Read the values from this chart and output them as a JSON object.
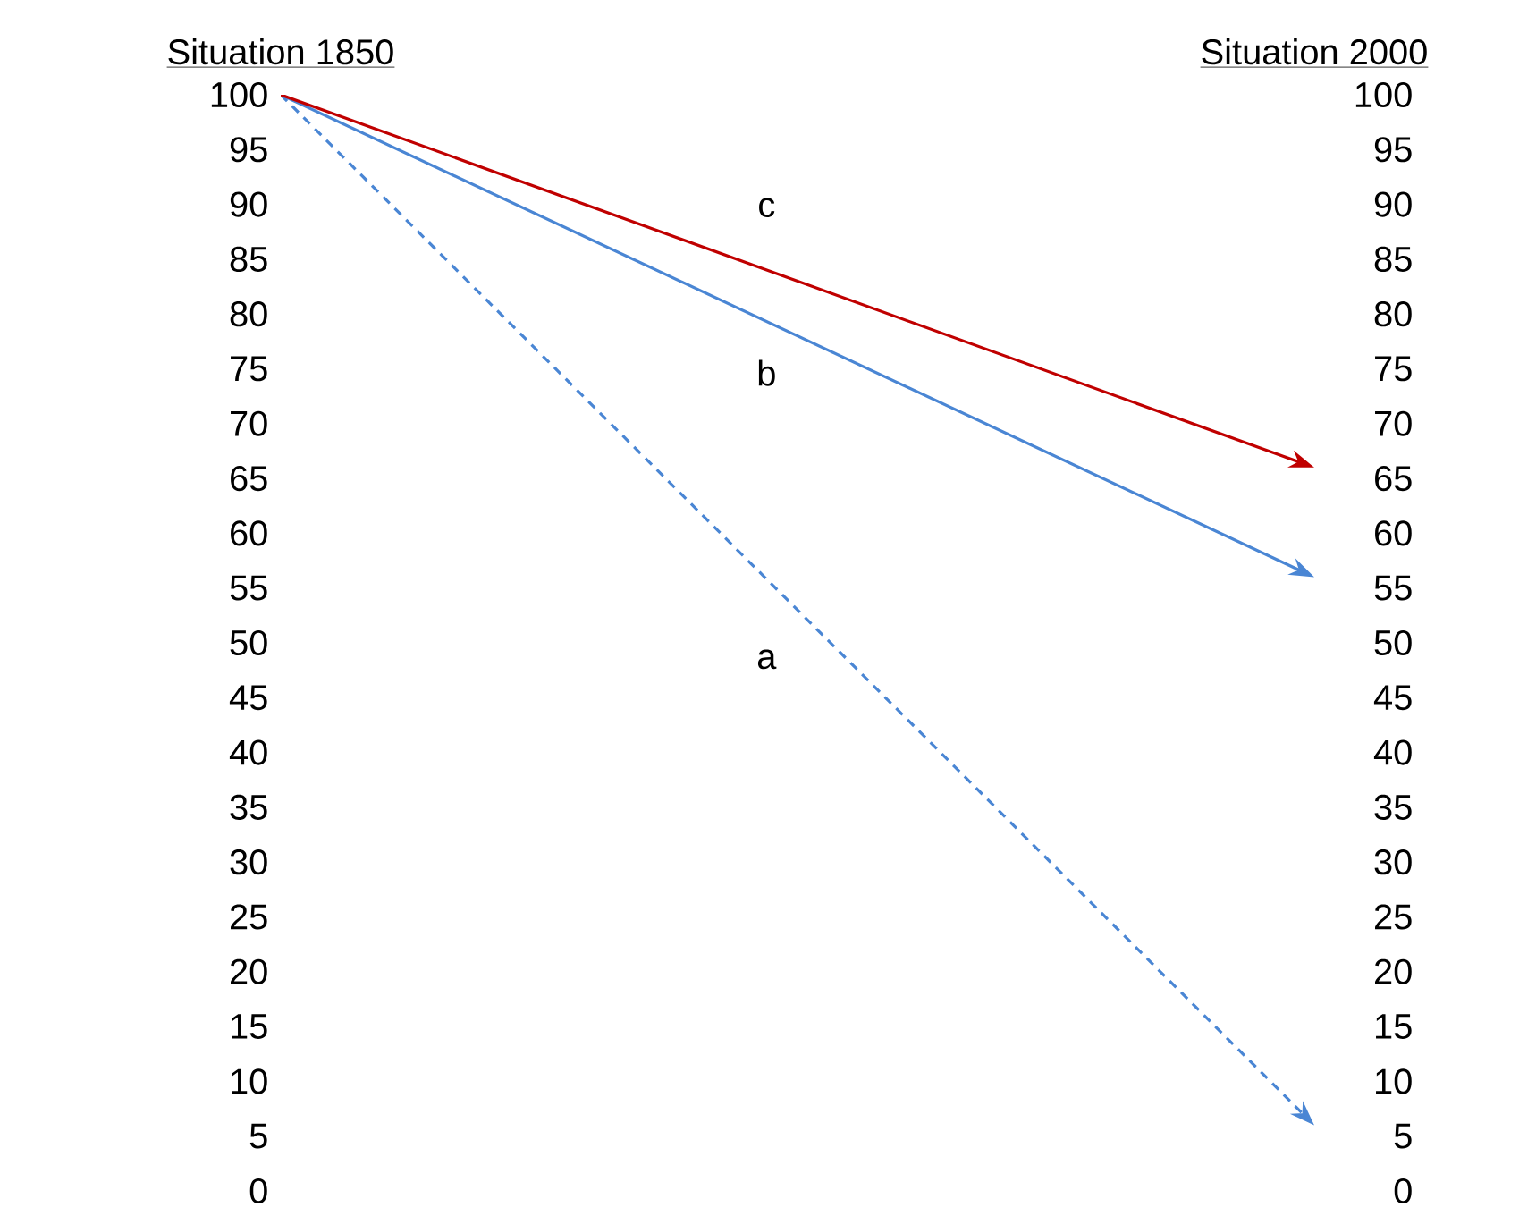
{
  "chart_data": {
    "type": "line",
    "categories": [
      "Situation 1850",
      "Situation 2000"
    ],
    "ylim": [
      0,
      100
    ],
    "yticks": [
      0,
      5,
      10,
      15,
      20,
      25,
      30,
      35,
      40,
      45,
      50,
      55,
      60,
      65,
      70,
      75,
      80,
      85,
      90,
      95,
      100
    ],
    "y2lim": [
      0,
      100
    ],
    "y2ticks": [
      0,
      5,
      10,
      15,
      20,
      25,
      30,
      35,
      40,
      45,
      50,
      55,
      60,
      65,
      70,
      75,
      80,
      85,
      90,
      95,
      100
    ],
    "grid": false,
    "legend": false,
    "series": [
      {
        "name": "a",
        "color": "#4a86d4",
        "values": [
          100,
          6
        ],
        "line_style": "dashed"
      },
      {
        "name": "b",
        "color": "#4a86d4",
        "values": [
          100,
          56
        ],
        "line_style": "solid"
      },
      {
        "name": "c",
        "color": "#c00000",
        "values": [
          100,
          66
        ],
        "line_style": "solid"
      }
    ]
  }
}
